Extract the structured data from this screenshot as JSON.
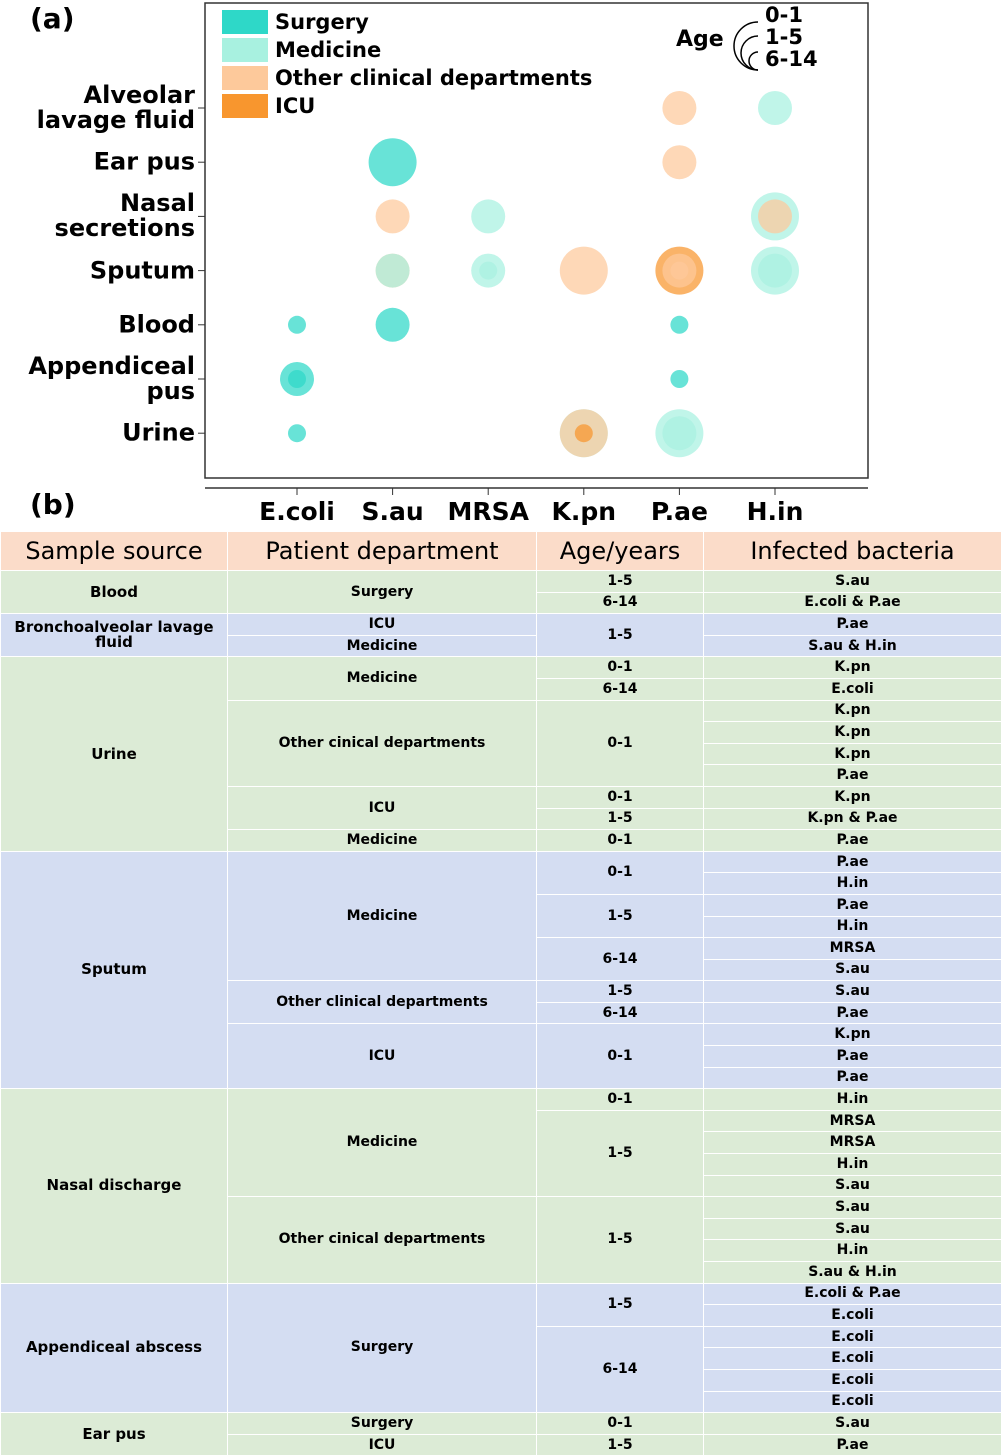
{
  "chart_data": {
    "type": "bubble",
    "title": "(a)",
    "categories": [
      "E.coli",
      "S.au",
      "MRSA",
      "K.pn",
      "P.ae",
      "H.in"
    ],
    "y_categories": [
      "Alveolar lavage fluid",
      "Ear pus",
      "Nasal secretions",
      "Sputum",
      "Blood",
      "Appendiceal pus",
      "Urine"
    ],
    "series": [
      {
        "name": "Surgery",
        "color": "#2ed8c8"
      },
      {
        "name": "Medicine",
        "color": "#a8f1e0"
      },
      {
        "name": "Other clinical departments",
        "color": "#fdc99b"
      },
      {
        "name": "ICU",
        "color": "#f8962e"
      }
    ],
    "size_legend": {
      "title": "Age",
      "labels": [
        "0-1",
        "1-5",
        "6-14"
      ]
    },
    "points": [
      {
        "x": "P.ae",
        "y": "Alveolar lavage fluid",
        "department": "Other clinical departments",
        "age": "1-5"
      },
      {
        "x": "H.in",
        "y": "Alveolar lavage fluid",
        "department": "Medicine",
        "age": "1-5"
      },
      {
        "x": "S.au",
        "y": "Ear pus",
        "department": "Surgery",
        "age": "0-1"
      },
      {
        "x": "P.ae",
        "y": "Ear pus",
        "department": "Other clinical departments",
        "age": "1-5"
      },
      {
        "x": "S.au",
        "y": "Nasal secretions",
        "department": "Other clinical departments",
        "age": "1-5"
      },
      {
        "x": "MRSA",
        "y": "Nasal secretions",
        "department": "Medicine",
        "age": "1-5"
      },
      {
        "x": "H.in",
        "y": "Nasal secretions",
        "department": "Medicine",
        "age": "0-1"
      },
      {
        "x": "H.in",
        "y": "Nasal secretions",
        "department": "Other clinical departments",
        "age": "1-5"
      },
      {
        "x": "S.au",
        "y": "Sputum",
        "department": "Other clinical departments",
        "age": "1-5"
      },
      {
        "x": "S.au",
        "y": "Sputum",
        "department": "Medicine",
        "age": "1-5"
      },
      {
        "x": "MRSA",
        "y": "Sputum",
        "department": "Medicine",
        "age": "1-5"
      },
      {
        "x": "MRSA",
        "y": "Sputum",
        "department": "Medicine",
        "age": "6-14"
      },
      {
        "x": "K.pn",
        "y": "Sputum",
        "department": "Other clinical departments",
        "age": "0-1"
      },
      {
        "x": "P.ae",
        "y": "Sputum",
        "department": "ICU",
        "age": "0-1"
      },
      {
        "x": "P.ae",
        "y": "Sputum",
        "department": "Other clinical departments",
        "age": "1-5"
      },
      {
        "x": "P.ae",
        "y": "Sputum",
        "department": "Other clinical departments",
        "age": "6-14"
      },
      {
        "x": "H.in",
        "y": "Sputum",
        "department": "Medicine",
        "age": "0-1"
      },
      {
        "x": "H.in",
        "y": "Sputum",
        "department": "Medicine",
        "age": "1-5"
      },
      {
        "x": "E.coli",
        "y": "Blood",
        "department": "Surgery",
        "age": "6-14"
      },
      {
        "x": "S.au",
        "y": "Blood",
        "department": "Surgery",
        "age": "1-5"
      },
      {
        "x": "P.ae",
        "y": "Blood",
        "department": "Surgery",
        "age": "6-14"
      },
      {
        "x": "E.coli",
        "y": "Appendiceal pus",
        "department": "Surgery",
        "age": "1-5"
      },
      {
        "x": "E.coli",
        "y": "Appendiceal pus",
        "department": "Surgery",
        "age": "6-14"
      },
      {
        "x": "P.ae",
        "y": "Appendiceal pus",
        "department": "Surgery",
        "age": "6-14"
      },
      {
        "x": "E.coli",
        "y": "Urine",
        "department": "Surgery",
        "age": "6-14"
      },
      {
        "x": "K.pn",
        "y": "Urine",
        "department": "Medicine",
        "age": "0-1"
      },
      {
        "x": "K.pn",
        "y": "Urine",
        "department": "Other clinical departments",
        "age": "0-1"
      },
      {
        "x": "K.pn",
        "y": "Urine",
        "department": "ICU",
        "age": "6-14"
      },
      {
        "x": "P.ae",
        "y": "Urine",
        "department": "Medicine",
        "age": "0-1"
      },
      {
        "x": "P.ae",
        "y": "Urine",
        "department": "Medicine",
        "age": "1-5"
      }
    ]
  },
  "table": {
    "title": "(b)",
    "columns": [
      "Sample source",
      "Patient department",
      "Age/years",
      "Infected bacteria"
    ],
    "rows": [
      [
        "Blood",
        "Surgery",
        "1-5",
        "S.au"
      ],
      [
        null,
        null,
        "6-14",
        "E.coli & P.ae"
      ],
      [
        "Bronchoalveolar lavage fluid",
        "ICU",
        "1-5",
        "P.ae"
      ],
      [
        null,
        "Medicine",
        null,
        "S.au & H.in"
      ],
      [
        "Urine",
        "Medicine",
        "0-1",
        "K.pn"
      ],
      [
        null,
        null,
        "6-14",
        "E.coli"
      ],
      [
        null,
        "Other cinical departments",
        "0-1",
        "K.pn"
      ],
      [
        null,
        null,
        null,
        "K.pn"
      ],
      [
        null,
        null,
        null,
        "K.pn"
      ],
      [
        null,
        null,
        null,
        "P.ae"
      ],
      [
        null,
        "ICU",
        "0-1",
        "K.pn"
      ],
      [
        null,
        null,
        "1-5",
        "K.pn & P.ae"
      ],
      [
        null,
        "Medicine",
        "0-1",
        "P.ae"
      ],
      [
        "Sputum",
        "Medicine",
        "0-1",
        "P.ae"
      ],
      [
        null,
        null,
        null,
        "H.in"
      ],
      [
        null,
        null,
        "1-5",
        "P.ae"
      ],
      [
        null,
        null,
        null,
        "H.in"
      ],
      [
        null,
        null,
        "6-14",
        "MRSA"
      ],
      [
        null,
        null,
        null,
        "S.au"
      ],
      [
        null,
        "Other clinical departments",
        "1-5",
        "S.au"
      ],
      [
        null,
        null,
        "6-14",
        "P.ae"
      ],
      [
        null,
        "ICU",
        "0-1",
        "K.pn"
      ],
      [
        null,
        null,
        null,
        "P.ae"
      ],
      [
        null,
        null,
        null,
        "P.ae"
      ],
      [
        "Nasal discharge",
        "Medicine",
        "0-1",
        "H.in"
      ],
      [
        null,
        null,
        "1-5",
        "MRSA"
      ],
      [
        null,
        null,
        null,
        "MRSA"
      ],
      [
        null,
        null,
        null,
        "H.in"
      ],
      [
        null,
        null,
        null,
        "S.au"
      ],
      [
        null,
        "Other cinical departments",
        "1-5",
        "S.au"
      ],
      [
        null,
        null,
        null,
        "S.au"
      ],
      [
        null,
        null,
        null,
        "H.in"
      ],
      [
        null,
        null,
        null,
        "S.au & H.in"
      ],
      [
        "Appendiceal abscess",
        "Surgery",
        "1-5",
        "E.coli & P.ae"
      ],
      [
        null,
        null,
        null,
        "E.coli"
      ],
      [
        null,
        null,
        "6-14",
        "E.coli"
      ],
      [
        null,
        null,
        null,
        "E.coli"
      ],
      [
        null,
        null,
        null,
        "E.coli"
      ],
      [
        null,
        null,
        null,
        "E.coli"
      ],
      [
        "Ear pus",
        "Surgery",
        "0-1",
        "S.au"
      ],
      [
        null,
        "ICU",
        "1-5",
        "P.ae"
      ]
    ]
  }
}
